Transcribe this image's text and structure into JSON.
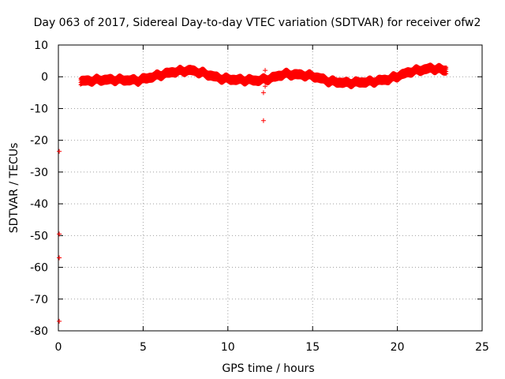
{
  "chart_data": {
    "type": "scatter",
    "title": "Day 063 of 2017, Sidereal Day-to-day VTEC variation (SDTVAR) for receiver ofw2",
    "xlabel": "GPS time / hours",
    "ylabel": "SDTVAR / TECUs",
    "xlim": [
      0,
      25
    ],
    "ylim": [
      -80,
      10
    ],
    "xticks": [
      0,
      5,
      10,
      15,
      20,
      25
    ],
    "yticks": [
      -80,
      -70,
      -60,
      -50,
      -40,
      -30,
      -20,
      -10,
      0,
      10
    ],
    "xtick_labels": [
      "0",
      "5",
      "10",
      "15",
      "20",
      "25"
    ],
    "ytick_labels": [
      "-80",
      "-70",
      "-60",
      "-50",
      "-40",
      "-30",
      "-20",
      "-10",
      "0",
      "10"
    ],
    "grid": true,
    "marker": "plus",
    "color": "#ff0000",
    "series": [
      {
        "name": "SDTVAR",
        "band_x_range": [
          1.3,
          22.9
        ],
        "band_anchor_points": [
          {
            "x": 1.3,
            "y": -1.5
          },
          {
            "x": 2.5,
            "y": -1.0
          },
          {
            "x": 3.5,
            "y": -1.0
          },
          {
            "x": 4.7,
            "y": -1.2
          },
          {
            "x": 5.6,
            "y": 0.0
          },
          {
            "x": 6.8,
            "y": 1.5
          },
          {
            "x": 7.8,
            "y": 2.0
          },
          {
            "x": 8.6,
            "y": 1.0
          },
          {
            "x": 9.5,
            "y": -0.5
          },
          {
            "x": 10.5,
            "y": -1.0
          },
          {
            "x": 11.8,
            "y": -1.2
          },
          {
            "x": 12.5,
            "y": -0.6
          },
          {
            "x": 13.3,
            "y": 0.8
          },
          {
            "x": 14.2,
            "y": 0.6
          },
          {
            "x": 15.0,
            "y": 0.2
          },
          {
            "x": 16.0,
            "y": -1.5
          },
          {
            "x": 17.0,
            "y": -2.0
          },
          {
            "x": 18.5,
            "y": -1.6
          },
          {
            "x": 19.5,
            "y": -0.8
          },
          {
            "x": 20.8,
            "y": 1.6
          },
          {
            "x": 22.0,
            "y": 2.6
          },
          {
            "x": 22.9,
            "y": 2.0
          }
        ],
        "outliers": [
          {
            "x": 12.1,
            "y": -13.8
          },
          {
            "x": 12.1,
            "y": -5.0
          },
          {
            "x": 12.2,
            "y": -3.0
          },
          {
            "x": 12.2,
            "y": 2.0
          },
          {
            "x": 0.05,
            "y": -23.5
          },
          {
            "x": 0.05,
            "y": -49.5
          },
          {
            "x": 0.05,
            "y": -57.0
          },
          {
            "x": 0.05,
            "y": -77.0
          }
        ]
      }
    ]
  }
}
